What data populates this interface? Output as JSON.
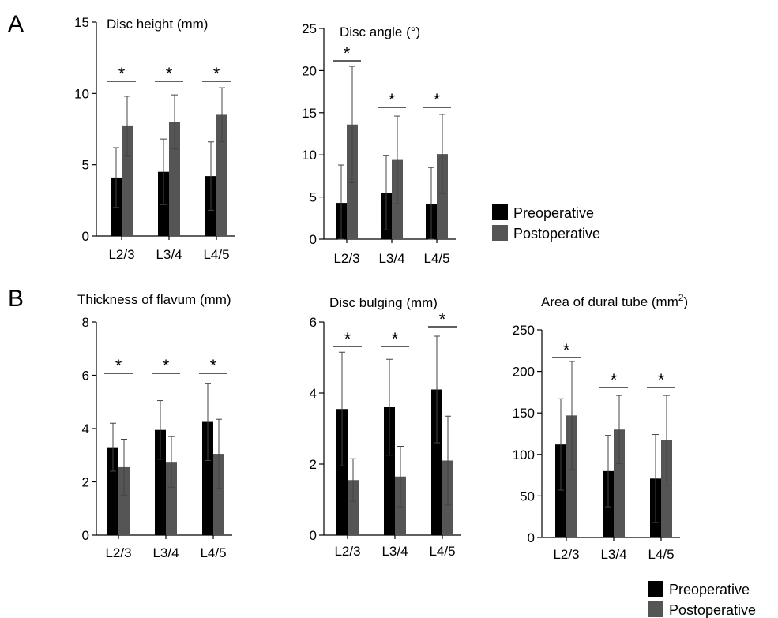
{
  "panels": [
    {
      "id": "A",
      "label": "A"
    },
    {
      "id": "B",
      "label": "B"
    }
  ],
  "legends": [
    {
      "entries": [
        "Preoperative",
        "Postoperative"
      ]
    },
    {
      "entries": [
        "Preoperative",
        "Postoperative"
      ]
    }
  ],
  "colors": {
    "preoperative": "#000000",
    "postoperative": "#555555",
    "axis": "#000000"
  },
  "chart_data": [
    {
      "type": "bar",
      "panel": "A",
      "title": "Disc height (mm)",
      "categories": [
        "L2/3",
        "L3/4",
        "L4/5"
      ],
      "ylim": [
        0,
        15
      ],
      "yticks": [
        0,
        5,
        10,
        15
      ],
      "significance": [
        "*",
        "*",
        "*"
      ],
      "series": [
        {
          "name": "Preoperative",
          "values": [
            4.1,
            4.5,
            4.2
          ],
          "err": [
            2.1,
            2.3,
            2.4
          ]
        },
        {
          "name": "Postoperative",
          "values": [
            7.7,
            8.0,
            8.5
          ],
          "err": [
            2.1,
            1.9,
            1.9
          ]
        }
      ]
    },
    {
      "type": "bar",
      "panel": "A",
      "title": "Disc angle (°)",
      "categories": [
        "L2/3",
        "L3/4",
        "L4/5"
      ],
      "ylim": [
        0,
        25
      ],
      "yticks": [
        0,
        5,
        10,
        15,
        20,
        25
      ],
      "significance": [
        "*",
        "*",
        "*"
      ],
      "series": [
        {
          "name": "Preoperative",
          "values": [
            4.3,
            5.5,
            4.2
          ],
          "err": [
            4.5,
            4.4,
            4.3
          ]
        },
        {
          "name": "Postoperative",
          "values": [
            13.6,
            9.4,
            10.1
          ],
          "err": [
            6.9,
            5.2,
            4.7
          ]
        }
      ]
    },
    {
      "type": "bar",
      "panel": "B",
      "title": "Thickness of flavum (mm)",
      "categories": [
        "L2/3",
        "L3/4",
        "L4/5"
      ],
      "ylim": [
        0,
        8
      ],
      "yticks": [
        0,
        2,
        4,
        6,
        8
      ],
      "significance": [
        "*",
        "*",
        "*"
      ],
      "series": [
        {
          "name": "Preoperative",
          "values": [
            3.3,
            3.95,
            4.25
          ],
          "err": [
            0.9,
            1.1,
            1.45
          ]
        },
        {
          "name": "Postoperative",
          "values": [
            2.55,
            2.75,
            3.05
          ],
          "err": [
            1.05,
            0.95,
            1.3
          ]
        }
      ]
    },
    {
      "type": "bar",
      "panel": "B",
      "title": "Disc bulging (mm)",
      "categories": [
        "L2/3",
        "L3/4",
        "L4/5"
      ],
      "ylim": [
        0,
        6
      ],
      "yticks": [
        0,
        2,
        4,
        6
      ],
      "significance": [
        "*",
        "*",
        "*"
      ],
      "series": [
        {
          "name": "Preoperative",
          "values": [
            3.55,
            3.6,
            4.1
          ],
          "err": [
            1.6,
            1.35,
            1.5
          ]
        },
        {
          "name": "Postoperative",
          "values": [
            1.55,
            1.65,
            2.1
          ],
          "err": [
            0.6,
            0.85,
            1.25
          ]
        }
      ]
    },
    {
      "type": "bar",
      "panel": "B",
      "title": "Area of dural tube (mm",
      "title_sup": "2",
      "title_end": ")",
      "categories": [
        "L2/3",
        "L3/4",
        "L4/5"
      ],
      "ylim": [
        0,
        250
      ],
      "yticks": [
        0,
        50,
        100,
        150,
        200,
        250
      ],
      "significance": [
        "*",
        "*",
        "*"
      ],
      "series": [
        {
          "name": "Preoperative",
          "values": [
            112,
            80,
            71
          ],
          "err": [
            55,
            43,
            53
          ]
        },
        {
          "name": "Postoperative",
          "values": [
            147,
            130,
            117
          ],
          "err": [
            65,
            41,
            54
          ]
        }
      ]
    }
  ]
}
